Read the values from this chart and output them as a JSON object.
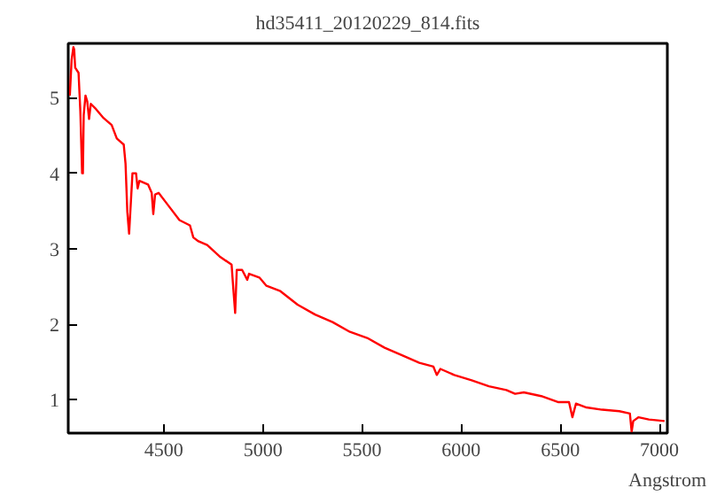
{
  "chart_data": {
    "type": "line",
    "title": "hd35411_20120229_814.fits",
    "xlabel": "Angstrom",
    "x": [
      4026,
      4035,
      4044,
      4048,
      4053,
      4070,
      4079,
      4088,
      4092,
      4096,
      4105,
      4114,
      4123,
      4132,
      4158,
      4193,
      4237,
      4263,
      4298,
      4307,
      4316,
      4325,
      4342,
      4360,
      4368,
      4377,
      4421,
      4439,
      4447,
      4456,
      4474,
      4518,
      4579,
      4632,
      4649,
      4675,
      4719,
      4781,
      4842,
      4851,
      4860,
      4868,
      4895,
      4921,
      4930,
      4982,
      5018,
      5088,
      5175,
      5263,
      5351,
      5439,
      5526,
      5614,
      5702,
      5789,
      5860,
      5877,
      5895,
      5965,
      6053,
      6140,
      6228,
      6272,
      6316,
      6404,
      6491,
      6544,
      6561,
      6579,
      6632,
      6711,
      6798,
      6851,
      6860,
      6868,
      6895,
      6947,
      7026
    ],
    "series": [
      {
        "color": "#ff0000",
        "values": [
          5.03,
          5.5,
          5.67,
          5.64,
          5.4,
          5.33,
          4.82,
          4.0,
          4.0,
          4.77,
          5.03,
          4.95,
          4.72,
          4.92,
          4.85,
          4.74,
          4.64,
          4.46,
          4.38,
          4.13,
          3.49,
          3.2,
          4.0,
          4.0,
          3.8,
          3.9,
          3.85,
          3.74,
          3.46,
          3.72,
          3.74,
          3.59,
          3.38,
          3.31,
          3.15,
          3.1,
          3.05,
          2.9,
          2.79,
          2.46,
          2.15,
          2.72,
          2.72,
          2.59,
          2.67,
          2.62,
          2.51,
          2.44,
          2.26,
          2.13,
          2.03,
          1.9,
          1.82,
          1.69,
          1.59,
          1.49,
          1.44,
          1.33,
          1.41,
          1.33,
          1.26,
          1.18,
          1.13,
          1.08,
          1.1,
          1.05,
          0.97,
          0.97,
          0.77,
          0.95,
          0.9,
          0.87,
          0.85,
          0.82,
          0.58,
          0.72,
          0.77,
          0.74,
          0.72
        ]
      }
    ],
    "xlim": [
      4018,
      7040
    ],
    "ylim": [
      0.56,
      5.72
    ],
    "xticks": [
      4500,
      5000,
      5500,
      6000,
      6500,
      7000
    ],
    "yticks": [
      1,
      2,
      3,
      4,
      5
    ],
    "grid": false,
    "marker": "none",
    "line_style": "solid"
  }
}
